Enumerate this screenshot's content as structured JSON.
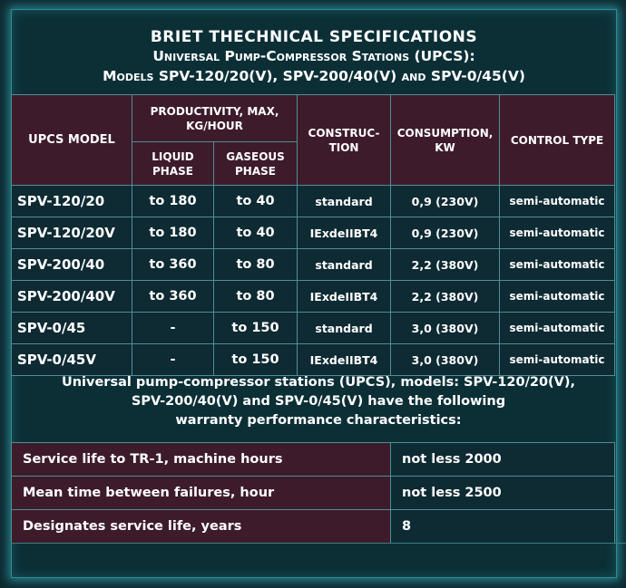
{
  "title": {
    "line1": "BRIET THECHNICAL SPECIFICATIONS",
    "line2": "Universal Pump-Compressor Stations (UPCS):",
    "line3": "Models SPV-120/20(V), SPV-200/40(V) and SPV-0/45(V)"
  },
  "spec_table": {
    "headers": {
      "model": "UPCS MODEL",
      "productivity": "PRODUCTIVITY, MAX, KG/HOUR",
      "liquid": "LIQUID PHASE",
      "gaseous": "GASEOUS PHASE",
      "construction": "CONSTRUC-TION",
      "consumption": "CONSUMPTION, KW",
      "control": "CONTROL TYPE"
    },
    "rows": [
      {
        "model": "SPV-120/20",
        "liquid": "to 180",
        "gaseous": "to 40",
        "construction": "standard",
        "consumption": "0,9 (230V)",
        "control": "semi-automatic"
      },
      {
        "model": "SPV-120/20V",
        "liquid": "to 180",
        "gaseous": "to 40",
        "construction": "IExdeIIBT4",
        "consumption": "0,9 (230V)",
        "control": "semi-automatic"
      },
      {
        "model": "SPV-200/40",
        "liquid": "to 360",
        "gaseous": "to 80",
        "construction": "standard",
        "consumption": "2,2 (380V)",
        "control": "semi-automatic"
      },
      {
        "model": "SPV-200/40V",
        "liquid": "to 360",
        "gaseous": "to 80",
        "construction": "IExdeIIBT4",
        "consumption": "2,2 (380V)",
        "control": "semi-automatic"
      },
      {
        "model": "SPV-0/45",
        "liquid": "-",
        "gaseous": "to 150",
        "construction": "standard",
        "consumption": "3,0 (380V)",
        "control": "semi-automatic"
      },
      {
        "model": "SPV-0/45V",
        "liquid": "-",
        "gaseous": "to 150",
        "construction": "IExdeIIBT4",
        "consumption": "3,0 (380V)",
        "control": "semi-automatic"
      }
    ]
  },
  "warranty_intro": {
    "line1": "Universal pump-compressor stations (UPCS), models: SPV-120/20(V),",
    "line2": "SPV-200/40(V) and SPV-0/45(V) have the following",
    "line3": "warranty performance characteristics:"
  },
  "warranty_table": [
    {
      "label": "Service life to TR-1, machine hours",
      "value": "not less 2000"
    },
    {
      "label": "Mean time between failures, hour",
      "value": "not less 2500"
    },
    {
      "label": "Designates service life, years",
      "value": "8"
    }
  ],
  "colors": {
    "background": "#0c2f36",
    "header_cell": "#3d1b2b",
    "glow": "#3cc8d7",
    "grid": "#4f8f96"
  }
}
